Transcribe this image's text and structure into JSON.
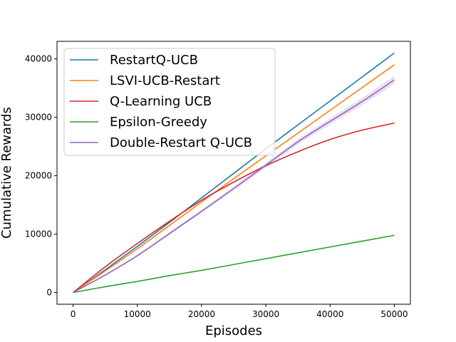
{
  "chart_data": {
    "type": "line",
    "title": "",
    "xlabel": "Episodes",
    "ylabel": "Cumulative Rewards",
    "xlim": [
      -2500,
      52500
    ],
    "ylim": [
      -2000,
      43000
    ],
    "x_ticks": [
      0,
      10000,
      20000,
      30000,
      40000,
      50000
    ],
    "y_ticks": [
      0,
      10000,
      20000,
      30000,
      40000
    ],
    "grid": false,
    "legend_position": "upper-left",
    "series": [
      {
        "name": "RestartQ-UCB",
        "color": "#1f77b4",
        "x": [
          0,
          5000,
          10000,
          15000,
          20000,
          25000,
          30000,
          35000,
          40000,
          45000,
          50000
        ],
        "y": [
          0,
          3900,
          7900,
          12000,
          16200,
          20400,
          24600,
          28700,
          32800,
          36900,
          41000
        ]
      },
      {
        "name": "LSVI-UCB-Restart",
        "color": "#ff7f0e",
        "x": [
          0,
          5000,
          10000,
          15000,
          20000,
          25000,
          30000,
          35000,
          40000,
          45000,
          50000
        ],
        "y": [
          0,
          3700,
          7500,
          11500,
          15500,
          19500,
          23400,
          27300,
          31200,
          35100,
          39000
        ]
      },
      {
        "name": "Q-Learning UCB",
        "color": "#d62728",
        "x": [
          0,
          5000,
          10000,
          15000,
          20000,
          25000,
          30000,
          35000,
          40000,
          45000,
          50000
        ],
        "y": [
          0,
          4400,
          8400,
          12200,
          15800,
          18900,
          21700,
          24100,
          26200,
          27800,
          29000
        ]
      },
      {
        "name": "Epsilon-Greedy",
        "color": "#2ca02c",
        "x": [
          0,
          5000,
          10000,
          15000,
          20000,
          25000,
          30000,
          35000,
          40000,
          45000,
          50000
        ],
        "y": [
          0,
          1000,
          1900,
          2900,
          3800,
          4800,
          5800,
          6800,
          7800,
          8800,
          9800
        ]
      },
      {
        "name": "Double-Restart Q-UCB",
        "color": "#9467bd",
        "x": [
          0,
          5000,
          10000,
          15000,
          20000,
          25000,
          30000,
          35000,
          40000,
          45000,
          50000
        ],
        "y": [
          0,
          3000,
          6300,
          10100,
          13900,
          17800,
          21800,
          25800,
          29300,
          32700,
          36400
        ],
        "band": 700
      }
    ]
  }
}
